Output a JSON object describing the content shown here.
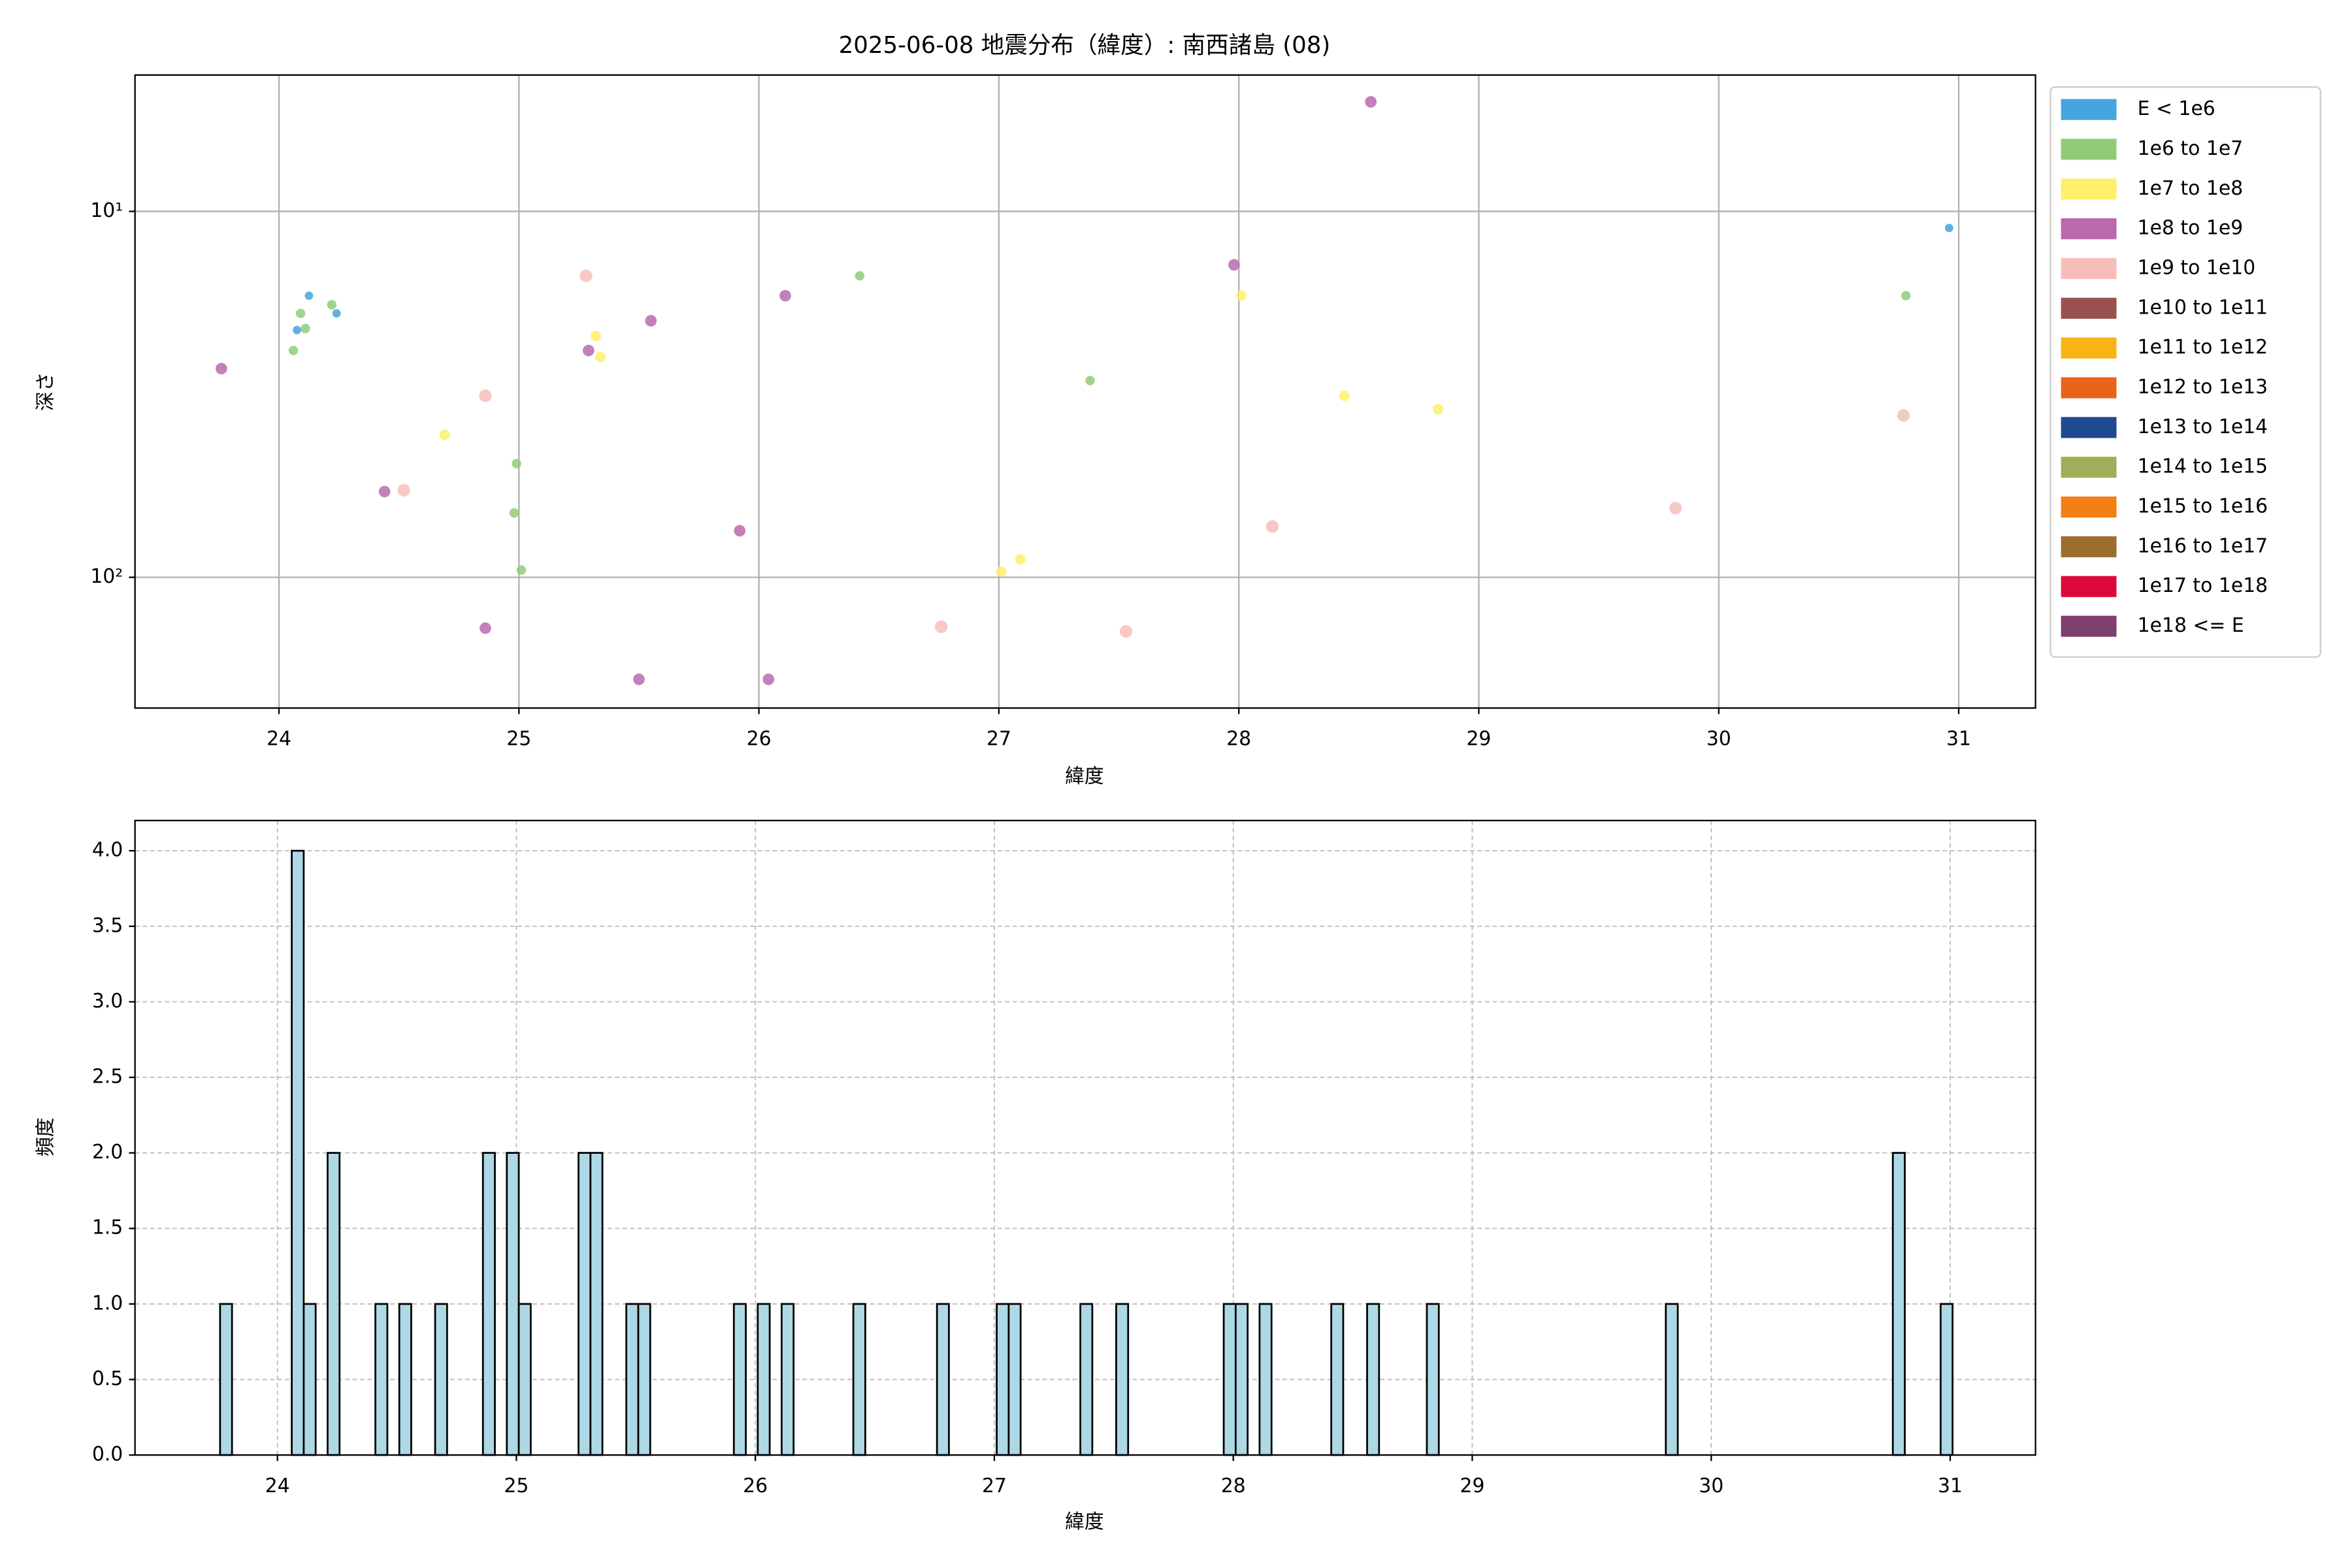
{
  "chart_data": [
    {
      "type": "scatter",
      "title": "2025-06-08 地震分布（緯度）: 南西諸島 (08)",
      "xlabel": "緯度",
      "ylabel": "深さ",
      "xlim": [
        23.4,
        31.32
      ],
      "xticks": [
        24,
        25,
        26,
        27,
        28,
        29,
        30,
        31
      ],
      "ylim": [
        4.24,
        227.6
      ],
      "yscale": "log",
      "invert_y": true,
      "yticks": [
        {
          "value": 10,
          "label": "10¹"
        },
        {
          "value": 100,
          "label": "10²"
        }
      ],
      "grid": true,
      "legend": "outside-upper-right",
      "series": [
        {
          "name": "E < 1e6",
          "color": "#45a5dc",
          "x": [
            24.075,
            24.125,
            24.24,
            30.96
          ],
          "values": [
            21.1,
            17.0,
            19.0,
            11.1
          ]
        },
        {
          "name": "1e6 to 1e7",
          "color": "#90cc78",
          "x": [
            24.06,
            24.09,
            24.11,
            24.22,
            24.99,
            24.98,
            25.01,
            26.42,
            27.38,
            30.78
          ],
          "values": [
            24.0,
            19.0,
            20.9,
            18.0,
            48.9,
            66.7,
            95.5,
            15.0,
            29.0,
            17.0
          ]
        },
        {
          "name": "1e7 to 1e8",
          "color": "#fef06a",
          "x": [
            24.69,
            25.32,
            25.34,
            27.01,
            27.09,
            28.01,
            28.44,
            28.83
          ],
          "values": [
            40.8,
            21.9,
            25.0,
            96.4,
            89.3,
            17.0,
            31.9,
            34.7
          ]
        },
        {
          "name": "1e8 to 1e9",
          "color": "#b86aad",
          "x": [
            23.76,
            24.44,
            24.86,
            25.29,
            25.55,
            25.5,
            25.92,
            26.04,
            26.11,
            27.98,
            28.55
          ],
          "values": [
            26.9,
            58.3,
            137.7,
            24.0,
            19.9,
            190,
            74.6,
            190,
            17.0,
            14.0,
            5.02
          ]
        },
        {
          "name": "1e9 to 1e10",
          "color": "#f6beba",
          "x": [
            24.52,
            24.86,
            25.28,
            26.76,
            27.53,
            28.14,
            29.82,
            30.77
          ],
          "values": [
            57.8,
            31.9,
            15.0,
            136.5,
            140.5,
            72.6,
            64.7,
            36.1
          ]
        },
        {
          "name": "1e10 to 1e11",
          "color": "#9a524f",
          "x": [],
          "values": []
        },
        {
          "name": "1e11 to 1e12",
          "color": "#f8b415",
          "x": [],
          "values": []
        },
        {
          "name": "1e12 to 1e13",
          "color": "#e9641a",
          "x": [],
          "values": []
        },
        {
          "name": "1e13 to 1e14",
          "color": "#1f4a8f",
          "x": [],
          "values": []
        },
        {
          "name": "1e14 to 1e15",
          "color": "#9fae58",
          "x": [],
          "values": []
        },
        {
          "name": "1e15 to 1e16",
          "color": "#f27f14",
          "x": [],
          "values": []
        },
        {
          "name": "1e16 to 1e17",
          "color": "#9b6e2f",
          "x": [],
          "values": []
        },
        {
          "name": "1e17 to 1e18",
          "color": "#dc0a3c",
          "x": [],
          "values": []
        },
        {
          "name": "1e18 <= E",
          "color": "#7e3e6e",
          "x": [],
          "values": []
        }
      ]
    },
    {
      "type": "histogram",
      "xlabel": "緯度",
      "ylabel": "頻度",
      "color": "#add8e6",
      "edgecolor": "#000000",
      "xlim": [
        23.404,
        31.357
      ],
      "xticks": [
        24,
        25,
        26,
        27,
        28,
        29,
        30,
        31
      ],
      "ylim": [
        0,
        4.2
      ],
      "grid": "dashed",
      "yticks": [
        {
          "value": 0,
          "label": "0.0"
        },
        {
          "value": 0.5,
          "label": "0.5"
        },
        {
          "value": 1,
          "label": "1.0"
        },
        {
          "value": 1.5,
          "label": "1.5"
        },
        {
          "value": 2,
          "label": "2.0"
        },
        {
          "value": 2.5,
          "label": "2.5"
        },
        {
          "value": 3,
          "label": "3.0"
        },
        {
          "value": 3.5,
          "label": "3.5"
        },
        {
          "value": 4,
          "label": "4.0"
        }
      ],
      "bins": [
        23.76,
        23.81,
        23.86,
        23.91,
        23.96,
        24.01,
        24.06,
        24.11,
        24.16,
        24.21,
        24.26,
        24.31,
        24.36,
        24.41,
        24.46,
        24.51,
        24.56,
        24.61,
        24.66,
        24.71,
        24.76,
        24.81,
        24.86,
        24.91,
        24.96,
        25.01,
        25.06,
        25.11,
        25.16,
        25.21,
        25.26,
        25.31,
        25.36,
        25.41,
        25.46,
        25.51,
        25.56,
        25.61,
        25.66,
        25.71,
        25.76,
        25.81,
        25.86,
        25.91,
        25.96,
        26.01,
        26.06,
        26.11,
        26.16,
        26.21,
        26.26,
        26.31,
        26.36,
        26.41,
        26.46,
        26.51,
        26.56,
        26.61,
        26.66,
        26.71,
        26.76,
        26.81,
        26.86,
        26.91,
        26.96,
        27.01,
        27.06,
        27.11,
        27.16,
        27.21,
        27.26,
        27.31,
        27.36,
        27.41,
        27.46,
        27.51,
        27.56,
        27.61,
        27.66,
        27.71,
        27.76,
        27.81,
        27.86,
        27.91,
        27.96,
        28.01,
        28.06,
        28.11,
        28.16,
        28.21,
        28.26,
        28.31,
        28.36,
        28.41,
        28.46,
        28.51,
        28.56,
        28.61,
        28.66,
        28.71,
        28.76,
        28.81,
        28.86,
        28.91,
        28.96,
        29.01,
        29.06,
        29.11,
        29.16,
        29.21,
        29.26,
        29.31,
        29.36,
        29.41,
        29.46,
        29.51,
        29.56,
        29.61,
        29.66,
        29.71,
        29.76,
        29.81,
        29.86,
        29.91,
        29.96,
        30.01,
        30.06,
        30.11,
        30.16,
        30.21,
        30.26,
        30.31,
        30.36,
        30.41,
        30.46,
        30.51,
        30.56,
        30.61,
        30.66,
        30.71,
        30.76,
        30.81,
        30.86,
        30.91,
        30.96,
        31.01
      ],
      "values": [
        1,
        0,
        0,
        0,
        0,
        0,
        4,
        1,
        0,
        2,
        0,
        0,
        0,
        1,
        0,
        1,
        0,
        0,
        1,
        0,
        0,
        0,
        2,
        0,
        2,
        1,
        0,
        0,
        0,
        0,
        2,
        2,
        0,
        0,
        1,
        1,
        0,
        0,
        0,
        0,
        0,
        0,
        0,
        1,
        0,
        1,
        0,
        1,
        0,
        0,
        0,
        0,
        0,
        1,
        0,
        0,
        0,
        0,
        0,
        0,
        1,
        0,
        0,
        0,
        0,
        1,
        1,
        0,
        0,
        0,
        0,
        0,
        1,
        0,
        0,
        1,
        0,
        0,
        0,
        0,
        0,
        0,
        0,
        0,
        1,
        1,
        0,
        1,
        0,
        0,
        0,
        0,
        0,
        1,
        0,
        0,
        1,
        0,
        0,
        0,
        0,
        1,
        0,
        0,
        0,
        0,
        0,
        0,
        0,
        0,
        0,
        0,
        0,
        0,
        0,
        0,
        0,
        0,
        0,
        0,
        0,
        1,
        0,
        0,
        0,
        0,
        0,
        0,
        0,
        0,
        0,
        0,
        0,
        0,
        0,
        0,
        0,
        0,
        0,
        0,
        2,
        0,
        0,
        0,
        1
      ]
    }
  ]
}
